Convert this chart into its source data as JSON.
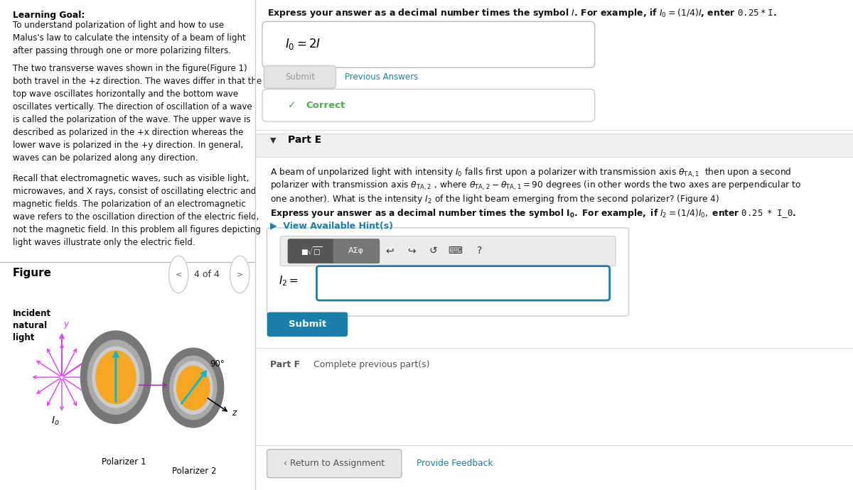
{
  "bg_color": "#ffffff",
  "left_panel_bg": "#dce8f0",
  "learning_goal_title": "Learning Goal:",
  "learning_goal_body1": "To understand polarization of light and how to use\nMalus's law to calculate the intensity of a beam of light\nafter passing through one or more polarizing filters.",
  "learning_goal_body2": "The two transverse waves shown in the figure(Figure 1)\nboth travel in the +z direction. The waves differ in that the\ntop wave oscillates horizontally and the bottom wave\noscillates vertically. The direction of oscillation of a wave\nis called the polarization of the wave. The upper wave is\ndescribed as polarized in the +x direction whereas the\nlower wave is polarized in the +y direction. In general,\nwaves can be polarized along any direction.",
  "learning_goal_body3": "Recall that electromagnetic waves, such as visible light,\nmicrowaves, and X rays, consist of oscillating electric and\nmagnetic fields. The polarization of an electromagnetic\nwave refers to the oscillation direction of the electric field,\nnot the magnetic field. In this problem all figures depicting\nlight waves illustrate only the electric field.",
  "figure_label": "Figure",
  "figure_nav": "4 of 4",
  "right_panel_top_text": "Express your answer as a decimal number times the symbol I. For example, if I₀ = (1/4)I, enter 0.25 * I.",
  "submit_btn_text": "Submit",
  "previous_answers_text": "Previous Answers",
  "part_e_label": "Part E",
  "hint_text": "► View Available Hint(s)",
  "submit_btn2_text": "Submit",
  "part_f_text": "Part F  Complete previous part(s)",
  "return_btn_text": "‹ Return to Assignment",
  "feedback_text": "Provide Feedback",
  "teal_color": "#1a7fa8",
  "submit_teal_bg": "#1a7fa8",
  "correct_green": "#4caf50",
  "input_border_teal": "#1a7fa8"
}
